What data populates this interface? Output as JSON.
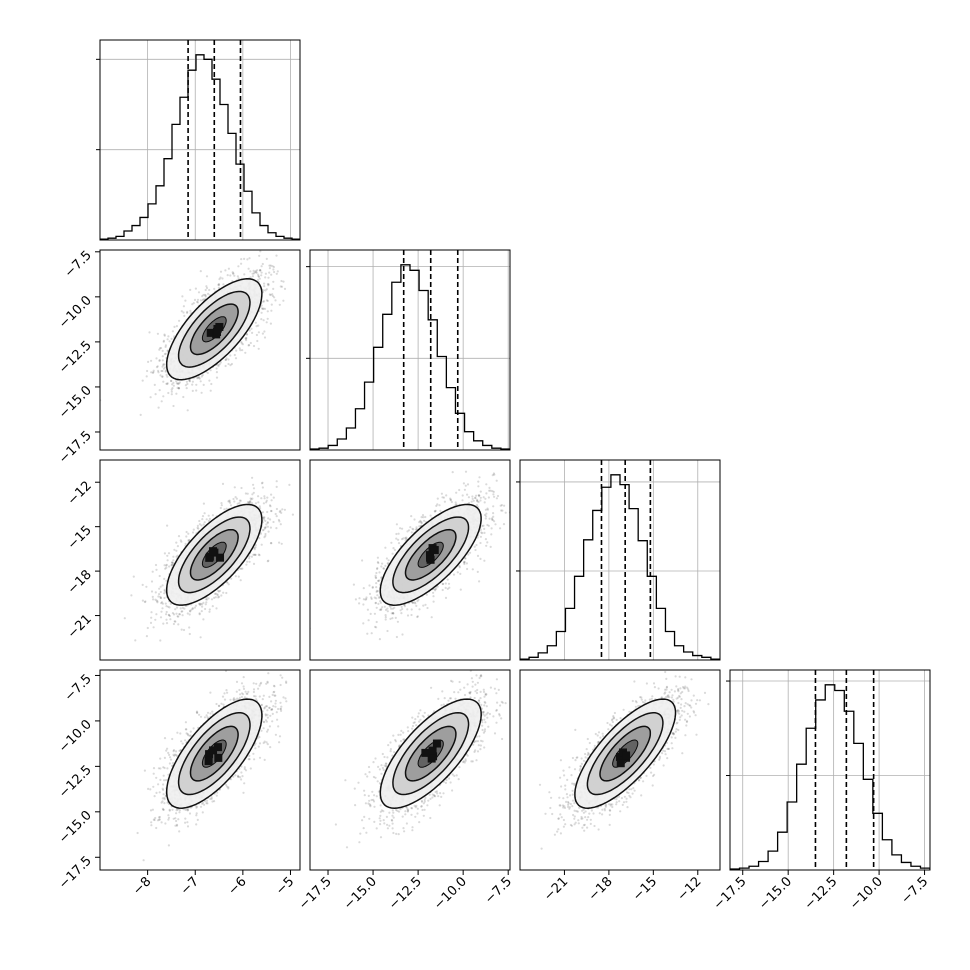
{
  "chart_data": {
    "type": "corner",
    "params": [
      {
        "range": [
          -9,
          -4.8
        ],
        "ticks": [
          -8,
          -7,
          -6,
          -5
        ],
        "tick_labels": [
          "−8",
          "−7",
          "−6",
          "−5"
        ],
        "mean": -6.6,
        "std": 0.5,
        "quantiles": [
          -7.15,
          -6.6,
          -6.05
        ],
        "hist": [
          1,
          2,
          4,
          10,
          16,
          25,
          40,
          60,
          90,
          128,
          158,
          188,
          205,
          200,
          178,
          150,
          118,
          84,
          54,
          30,
          16,
          8,
          4,
          2,
          1
        ]
      },
      {
        "range": [
          -18.5,
          -7.4
        ],
        "ticks": [
          -17.5,
          -15.0,
          -12.5,
          -10.0,
          -7.5
        ],
        "tick_labels": [
          "−17.5",
          "−15.0",
          "−12.5",
          "−10.0",
          "−7.5"
        ],
        "mean": -11.8,
        "std": 1.4,
        "quantiles": [
          -13.3,
          -11.8,
          -10.3
        ],
        "hist": [
          1,
          2,
          5,
          12,
          24,
          45,
          74,
          112,
          148,
          183,
          202,
          196,
          174,
          142,
          102,
          68,
          40,
          20,
          10,
          5,
          2,
          1
        ]
      },
      {
        "range": [
          -24,
          -10.5
        ],
        "ticks": [
          -21,
          -18,
          -15,
          -12
        ],
        "tick_labels": [
          "−21",
          "−18",
          "−15",
          "−12"
        ],
        "mean": -16.9,
        "std": 1.7,
        "quantiles": [
          -18.5,
          -16.9,
          -15.2
        ],
        "hist": [
          1,
          3,
          8,
          16,
          32,
          58,
          94,
          135,
          168,
          194,
          208,
          197,
          170,
          134,
          94,
          58,
          32,
          16,
          9,
          5,
          3,
          1
        ]
      },
      {
        "range": [
          -18.2,
          -7.2
        ],
        "ticks": [
          -17.5,
          -15.0,
          -12.5,
          -10.0,
          -7.5
        ],
        "tick_labels": [
          "−17.5",
          "−15.0",
          "−12.5",
          "−10.0",
          "−7.5"
        ],
        "mean": -11.8,
        "std": 1.5,
        "quantiles": [
          -13.5,
          -11.8,
          -10.3
        ],
        "hist": [
          1,
          2,
          4,
          9,
          20,
          40,
          72,
          112,
          150,
          180,
          196,
          190,
          168,
          134,
          96,
          60,
          32,
          16,
          8,
          4,
          2
        ]
      }
    ],
    "correlations": [
      [
        1,
        0.7,
        0.7,
        0.7
      ],
      [
        0.7,
        1,
        0.72,
        0.72
      ],
      [
        0.7,
        0.72,
        1,
        0.75
      ],
      [
        0.7,
        0.72,
        0.75,
        1
      ]
    ],
    "quantile_levels": [
      0.16,
      0.5,
      0.84
    ],
    "grid": true
  }
}
